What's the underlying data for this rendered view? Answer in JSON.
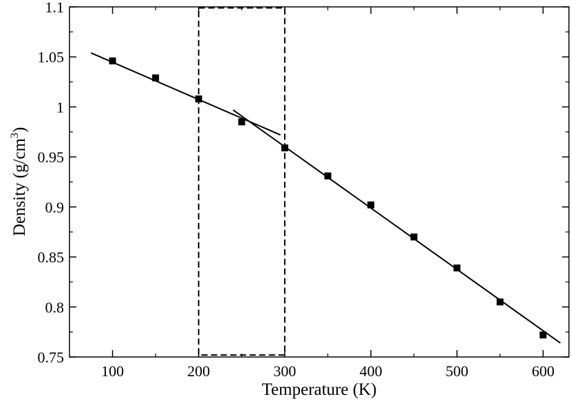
{
  "chart_data": {
    "type": "scatter",
    "xlabel": "Temperature (K)",
    "ylabel_main": "Density (g/cm",
    "ylabel_sup": "3",
    "ylabel_close": ")",
    "xlim": [
      50,
      630
    ],
    "ylim": [
      0.75,
      1.1
    ],
    "xticks": [
      100,
      200,
      300,
      400,
      500,
      600
    ],
    "xtick_labels": [
      "100",
      "200",
      "300",
      "400",
      "500",
      "600"
    ],
    "yticks": [
      0.75,
      0.8,
      0.85,
      0.9,
      0.95,
      1.0,
      1.05,
      1.1
    ],
    "ytick_labels": [
      "0.75",
      "0.8",
      "0.85",
      "0.9",
      "0.95",
      "1",
      "1.05",
      "1.1"
    ],
    "grid": false,
    "series": [
      {
        "marker": "square",
        "color": "#000000",
        "x": [
          100,
          150,
          200,
          250,
          300,
          350,
          400,
          450,
          500,
          550,
          600
        ],
        "y": [
          1.046,
          1.029,
          1.008,
          0.985,
          0.959,
          0.931,
          0.902,
          0.87,
          0.839,
          0.805,
          0.772
        ]
      }
    ],
    "fit_lines": [
      {
        "x": [
          75,
          295
        ],
        "y": [
          1.054,
          0.972
        ]
      },
      {
        "x": [
          240,
          620
        ],
        "y": [
          0.997,
          0.764
        ]
      }
    ],
    "highlight_box": {
      "x": [
        200,
        300
      ],
      "y": [
        0.752,
        1.099
      ],
      "style": "dashed"
    }
  }
}
